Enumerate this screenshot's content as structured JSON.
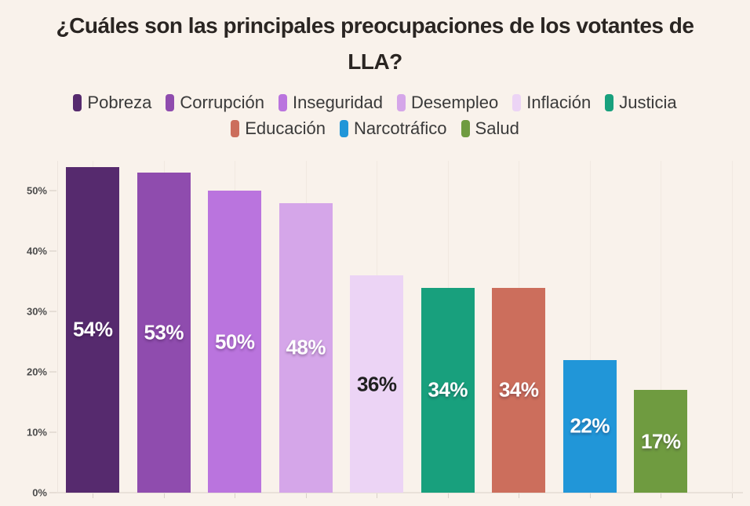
{
  "page": {
    "background": "#f9f2eb"
  },
  "title": {
    "text": "¿Cuáles son las principales preocupaciones de los votantes de LLA?",
    "line1": "¿Cuáles son las principales preocupaciones de los votantes de",
    "line2": "LLA?",
    "color": "#2a2522"
  },
  "chart_data": {
    "type": "bar",
    "title": "¿Cuáles son las principales preocupaciones de los votantes de LLA?",
    "categories": [
      "Pobreza",
      "Corrupción",
      "Inseguridad",
      "Desempleo",
      "Inflación",
      "Justicia",
      "Educación",
      "Narcotráfico",
      "Salud"
    ],
    "values": [
      54,
      53,
      50,
      48,
      36,
      34,
      34,
      22,
      17
    ],
    "data_labels": [
      "54%",
      "53%",
      "50%",
      "48%",
      "36%",
      "34%",
      "34%",
      "22%",
      "17%"
    ],
    "unit": "%",
    "colors": [
      "#562a6e",
      "#8f4cae",
      "#ba74de",
      "#d5a6e9",
      "#ecd4f5",
      "#18a07d",
      "#cc6e5c",
      "#2196d8",
      "#6f9b40"
    ],
    "label_colors": [
      "#ffffff",
      "#ffffff",
      "#ffffff",
      "#ffffff",
      "#1f1f1f",
      "#ffffff",
      "#ffffff",
      "#ffffff",
      "#ffffff"
    ],
    "xlabel": "",
    "ylabel": "",
    "yticks": [
      "0%",
      "10%",
      "20%",
      "30%",
      "40%",
      "50%"
    ],
    "ytick_values": [
      0,
      10,
      20,
      30,
      40,
      50
    ],
    "ylim": [
      0,
      55
    ],
    "grid": "vertical-faint",
    "legend_position": "top",
    "legend_rows": [
      6,
      3
    ],
    "background_color": "#f9f2eb"
  }
}
